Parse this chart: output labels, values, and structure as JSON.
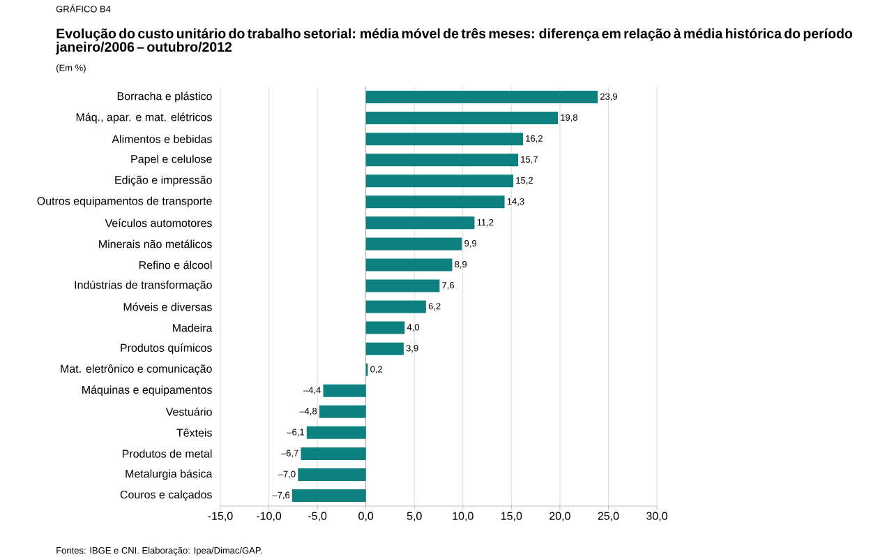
{
  "chart_data": {
    "type": "bar",
    "orientation": "horizontal",
    "title": "Evolução do custo unitário do trabalho setorial: média móvel de três meses: diferença em relação à média histórica do período janeiro/2006 – outubro/2012",
    "subtitle": "(Em %)",
    "annotations": [
      "GRÁFICO B4",
      "Fontes: IBGE e CNI. Elaboração: Ipea/Dimac/GAP."
    ],
    "categories": [
      "Borracha e plástico",
      "Máq., apar. e mat. elétricos",
      "Alimentos e bebidas",
      "Papel e celulose",
      "Edição e impressão",
      "Outros equipamentos de transporte",
      "Veículos automotores",
      "Minerais não metálicos",
      "Refino e álcool",
      "Indústrias de transformação",
      "Móveis e diversas",
      "Madeira",
      "Produtos químicos",
      "Mat. eletrônico e comunicação",
      "Máquinas e equipamentos",
      "Vestuário",
      "Têxteis",
      "Produtos de metal",
      "Metalurgia básica",
      "Couros e calçados"
    ],
    "values": [
      23.9,
      19.8,
      16.2,
      15.7,
      15.2,
      14.3,
      11.2,
      9.9,
      8.9,
      7.6,
      6.2,
      4.0,
      3.9,
      0.2,
      -4.4,
      -4.8,
      -6.1,
      -6.7,
      -7.0,
      -7.6
    ],
    "value_labels": [
      "23,9",
      "19,8",
      "16,2",
      "15,7",
      "15,2",
      "14,3",
      "11,2",
      "9,9",
      "8,9",
      "7,6",
      "6,2",
      "4,0",
      "3,9",
      "0,2",
      "–4,4",
      "–4,8",
      "–6,1",
      "–6,7",
      "–7,0",
      "–7,6"
    ],
    "color": "#0e8080",
    "xlim": [
      -15,
      30
    ],
    "xticks": [
      {
        "value": -15,
        "label": "-15,0"
      },
      {
        "value": -10,
        "label": "-10,0"
      },
      {
        "value": -5,
        "label": "-5,0"
      },
      {
        "value": 0,
        "label": "0,0"
      },
      {
        "value": 5,
        "label": "5,0"
      },
      {
        "value": 10,
        "label": "10,0"
      },
      {
        "value": 15,
        "label": "15,0"
      },
      {
        "value": 20,
        "label": "20,0"
      },
      {
        "value": 25,
        "label": "25,0"
      },
      {
        "value": 30,
        "label": "30,0"
      }
    ],
    "grid": "x"
  }
}
